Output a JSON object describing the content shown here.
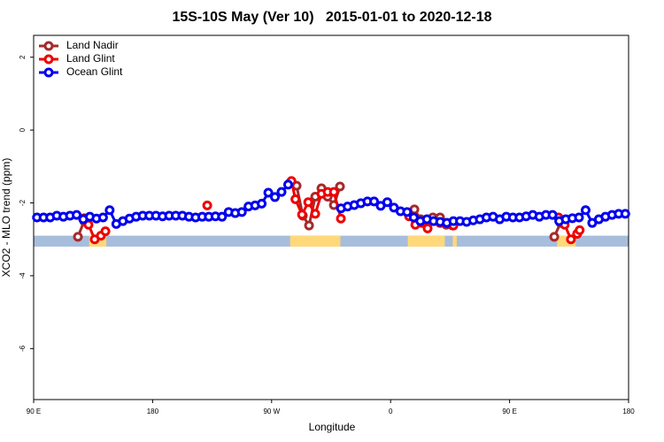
{
  "chart_data": {
    "type": "line",
    "title": "15S-10S May (Ver 10)   2015-01-01 to 2020-12-18",
    "x_label": "Longitude",
    "y_label": "XCO2 - MLO trend (ppm)",
    "xlim": [
      90,
      540
    ],
    "xticks": [
      {
        "value": 90,
        "label": "90 E"
      },
      {
        "value": 180,
        "label": "180"
      },
      {
        "value": 270,
        "label": "90 W"
      },
      {
        "value": 360,
        "label": "0"
      },
      {
        "value": 450,
        "label": "90 E"
      },
      {
        "value": 540,
        "label": "180"
      }
    ],
    "ylim": [
      -7.4,
      2.6
    ],
    "yticks": [
      -6,
      -4,
      -2,
      0,
      2
    ],
    "legend_position": "top-left",
    "surface_strip": {
      "ylim": [
        -3.2,
        -2.9
      ],
      "ocean_color": "#a7bddc",
      "land_color": "#ffd87a",
      "land": [
        [
          132,
          145
        ],
        [
          284,
          322
        ],
        [
          373,
          401
        ],
        [
          407,
          410
        ],
        [
          486,
          500
        ]
      ]
    },
    "series": [
      {
        "name": "Land Nadir",
        "color": "#a52a2a",
        "x": [
          123.5,
          128.2,
          200,
          284.2,
          288.9,
          293.6,
          298.3,
          303,
          307.7,
          312.4,
          317.1,
          321.7,
          350,
          378,
          382.7,
          392,
          397.4,
          402.1,
          406.8,
          450,
          483.8,
          488.5
        ],
        "values": [
          -2.93,
          -2.5,
          null,
          -1.44,
          -1.53,
          -2.35,
          -2.62,
          -1.83,
          -1.6,
          -1.83,
          -2.06,
          -1.55,
          null,
          -2.18,
          -2.45,
          -2.4,
          -2.4,
          -2.6,
          -2.62,
          null,
          -2.93,
          -2.55
        ]
      },
      {
        "name": "Land Glint",
        "color": "#ee0000",
        "x": [
          128.2,
          131.5,
          136.2,
          140.9,
          144.3,
          180,
          221.3,
          250,
          285,
          288,
          293,
          297.7,
          303,
          307.7,
          312.4,
          317.1,
          322.4,
          350,
          374,
          378.7,
          383.4,
          388,
          392.7,
          397.4,
          402.8,
          407.5,
          450,
          487,
          491.7,
          496.4,
          501.1,
          503
        ],
        "values": [
          -2.42,
          -2.6,
          -3.0,
          -2.9,
          -2.78,
          null,
          -2.07,
          null,
          -1.4,
          -1.9,
          -2.32,
          -1.98,
          -2.3,
          -1.75,
          -1.7,
          -1.7,
          -2.43,
          null,
          -2.37,
          -2.6,
          -2.55,
          -2.7,
          -2.5,
          -2.55,
          -2.55,
          -2.62,
          null,
          -2.4,
          -2.6,
          -3.0,
          -2.85,
          -2.75
        ]
      },
      {
        "name": "Ocean Glint",
        "color": "#0000ee",
        "x": [
          92.5,
          97.5,
          102.5,
          107.5,
          112.5,
          117.5,
          122.5,
          127.5,
          132.5,
          137.5,
          142.5,
          147.5,
          152.5,
          157.5,
          162.5,
          167.5,
          172.5,
          177.5,
          182.5,
          187.5,
          192.5,
          197.5,
          202.5,
          207.5,
          212.5,
          217.5,
          222.5,
          227.5,
          232.5,
          237.5,
          242.5,
          247.5,
          252.5,
          257.5,
          262.5,
          267.5,
          272.5,
          277.5,
          282.5,
          302.5,
          322.5,
          327.5,
          332.5,
          337.5,
          342.5,
          347.5,
          352.5,
          357.5,
          362.5,
          367.5,
          372.5,
          377.5,
          382.5,
          387.5,
          392.5,
          397.5,
          402.5,
          407.5,
          412.5,
          417.5,
          422.5,
          427.5,
          432.5,
          437.5,
          442.5,
          447.5,
          452.5,
          457.5,
          462.5,
          467.5,
          472.5,
          477.5,
          482.5,
          487.5,
          492.5,
          497.5,
          502.5,
          507.5,
          512.5,
          517.5,
          522.5,
          527.5,
          532.5,
          537.5
        ],
        "values": [
          -2.4,
          -2.4,
          -2.4,
          -2.35,
          -2.38,
          -2.35,
          -2.33,
          -2.45,
          -2.38,
          -2.43,
          -2.4,
          -2.2,
          -2.58,
          -2.5,
          -2.43,
          -2.38,
          -2.35,
          -2.35,
          -2.35,
          -2.37,
          -2.35,
          -2.35,
          -2.35,
          -2.38,
          -2.4,
          -2.38,
          -2.38,
          -2.37,
          -2.38,
          -2.25,
          -2.28,
          -2.25,
          -2.1,
          -2.07,
          -2.02,
          -1.72,
          -1.84,
          -1.7,
          -1.5,
          null,
          -2.15,
          -2.1,
          -2.06,
          -2.01,
          -1.96,
          -1.96,
          -2.08,
          -1.98,
          -2.13,
          -2.23,
          -2.25,
          -2.4,
          -2.5,
          -2.45,
          -2.5,
          -2.52,
          -2.55,
          -2.5,
          -2.5,
          -2.52,
          -2.48,
          -2.45,
          -2.4,
          -2.38,
          -2.45,
          -2.38,
          -2.4,
          -2.4,
          -2.37,
          -2.33,
          -2.38,
          -2.33,
          -2.33,
          -2.5,
          -2.45,
          -2.42,
          -2.4,
          -2.2,
          -2.55,
          -2.45,
          -2.38,
          -2.33,
          -2.3,
          -2.3
        ]
      }
    ]
  }
}
